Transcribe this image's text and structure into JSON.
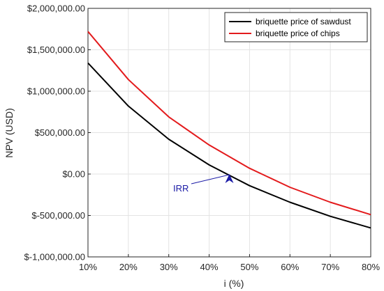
{
  "chart_data": {
    "type": "line",
    "xlabel": "i (%)",
    "ylabel": "NPV (USD)",
    "x": [
      10,
      20,
      30,
      40,
      50,
      60,
      70,
      80
    ],
    "x_tick_labels": [
      "10%",
      "20%",
      "30%",
      "40%",
      "50%",
      "60%",
      "70%",
      "80%"
    ],
    "xlim": [
      10,
      80
    ],
    "ylim": [
      -1000000,
      2000000
    ],
    "y_ticks": [
      -1000000,
      -500000,
      0,
      500000,
      1000000,
      1500000,
      2000000
    ],
    "y_tick_labels": [
      "$-1,000,000.00",
      "$-500,000.00",
      "$0.00",
      "$500,000.00",
      "$1,000,000.00",
      "$1,500,000.00",
      "$2,000,000.00"
    ],
    "grid": true,
    "legend_position": "top-right",
    "series": [
      {
        "name": "briquette price of sawdust",
        "color": "#000000",
        "values": [
          1340000,
          820000,
          420000,
          110000,
          -140000,
          -340000,
          -510000,
          -650000
        ]
      },
      {
        "name": "briquette price of chips",
        "color": "#e31a1c",
        "values": [
          1720000,
          1140000,
          690000,
          350000,
          70000,
          -160000,
          -340000,
          -490000
        ]
      }
    ],
    "annotations": [
      {
        "text": "IRR",
        "point_x": 45,
        "point_y": 0,
        "arrow_color": "#1a1aa6"
      }
    ]
  }
}
